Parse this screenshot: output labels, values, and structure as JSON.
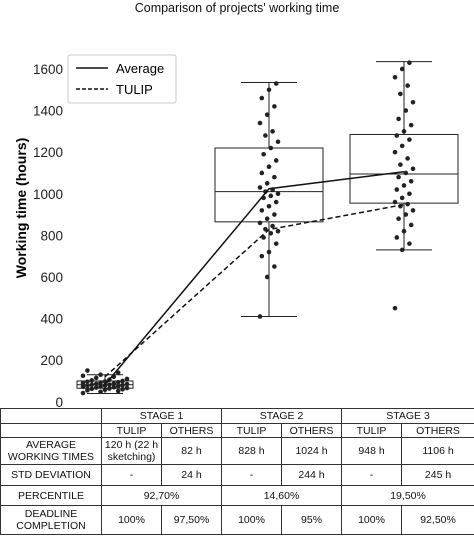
{
  "chart_data": {
    "type": "box",
    "title": "Comparison of projects' working time",
    "xlabel": "",
    "ylabel": "Working time (hours)",
    "ylim": [
      -30,
      1720
    ],
    "yticks": [
      0,
      200,
      400,
      600,
      800,
      1000,
      1200,
      1400,
      1600
    ],
    "legend": {
      "position": "top-left",
      "entries": [
        "Average",
        "TULIP"
      ]
    },
    "categories": [
      "STAGE 1",
      "STAGE 2",
      "STAGE 3"
    ],
    "boxes": [
      {
        "category": "STAGE 1",
        "whisker_low": 40,
        "q1": 65,
        "median": 82,
        "q3": 100,
        "whisker_high": 130
      },
      {
        "category": "STAGE 2",
        "whisker_low": 410,
        "q1": 865,
        "median": 1010,
        "q3": 1220,
        "whisker_high": 1535
      },
      {
        "category": "STAGE 3",
        "whisker_low": 730,
        "q1": 955,
        "median": 1095,
        "q3": 1285,
        "whisker_high": 1635
      }
    ],
    "points": [
      {
        "category": "STAGE 1",
        "values": [
          42,
          48,
          52,
          55,
          58,
          60,
          62,
          64,
          66,
          68,
          70,
          72,
          74,
          75,
          77,
          78,
          80,
          82,
          83,
          85,
          86,
          88,
          90,
          92,
          94,
          96,
          98,
          100,
          103,
          106,
          110,
          115,
          120,
          125,
          130,
          140,
          150
        ]
      },
      {
        "category": "STAGE 2",
        "values": [
          410,
          600,
          650,
          700,
          720,
          760,
          790,
          810,
          820,
          830,
          845,
          860,
          880,
          900,
          920,
          940,
          960,
          980,
          990,
          1000,
          1010,
          1020,
          1030,
          1050,
          1080,
          1100,
          1130,
          1160,
          1190,
          1220,
          1250,
          1280,
          1300,
          1340,
          1380,
          1420,
          1460,
          1500,
          1530
        ]
      },
      {
        "category": "STAGE 3",
        "values": [
          450,
          730,
          760,
          790,
          820,
          850,
          880,
          900,
          920,
          940,
          950,
          960,
          980,
          1000,
          1020,
          1040,
          1060,
          1080,
          1100,
          1120,
          1140,
          1170,
          1200,
          1230,
          1260,
          1280,
          1300,
          1330,
          1360,
          1400,
          1440,
          1480,
          1520,
          1560,
          1600,
          1630
        ]
      }
    ],
    "series": [
      {
        "name": "Average",
        "style": "solid",
        "values": [
          82,
          1024,
          1106
        ]
      },
      {
        "name": "TULIP",
        "style": "dashed",
        "values": [
          120,
          828,
          948
        ]
      }
    ]
  },
  "table": {
    "stages": [
      "STAGE 1",
      "STAGE 2",
      "STAGE 3"
    ],
    "sub_headers": [
      "TULIP",
      "OTHERS",
      "TULIP",
      "OTHERS",
      "TULIP",
      "OTHERS"
    ],
    "rows": [
      {
        "label_line1": "AVERAGE",
        "label_line2": "WORKING TIMES",
        "cells": [
          "120 h (22 h",
          "82 h",
          "828 h",
          "1024 h",
          "948 h",
          "1106 h"
        ],
        "cell0_line2": "sketching)"
      },
      {
        "label": "STD DEVIATION",
        "cells": [
          "-",
          "24 h",
          "-",
          "244 h",
          "-",
          "245 h"
        ]
      },
      {
        "label": "PERCENTILE",
        "merged": [
          "92,70%",
          "14,60%",
          "19,50%"
        ]
      },
      {
        "label_line1": "DEADLINE",
        "label_line2": "COMPLETION",
        "cells": [
          "100%",
          "97,50%",
          "100%",
          "95%",
          "100%",
          "92,50%"
        ]
      }
    ]
  },
  "colors": {
    "axis": "#222222",
    "box": "#222222",
    "points": "#222222"
  }
}
